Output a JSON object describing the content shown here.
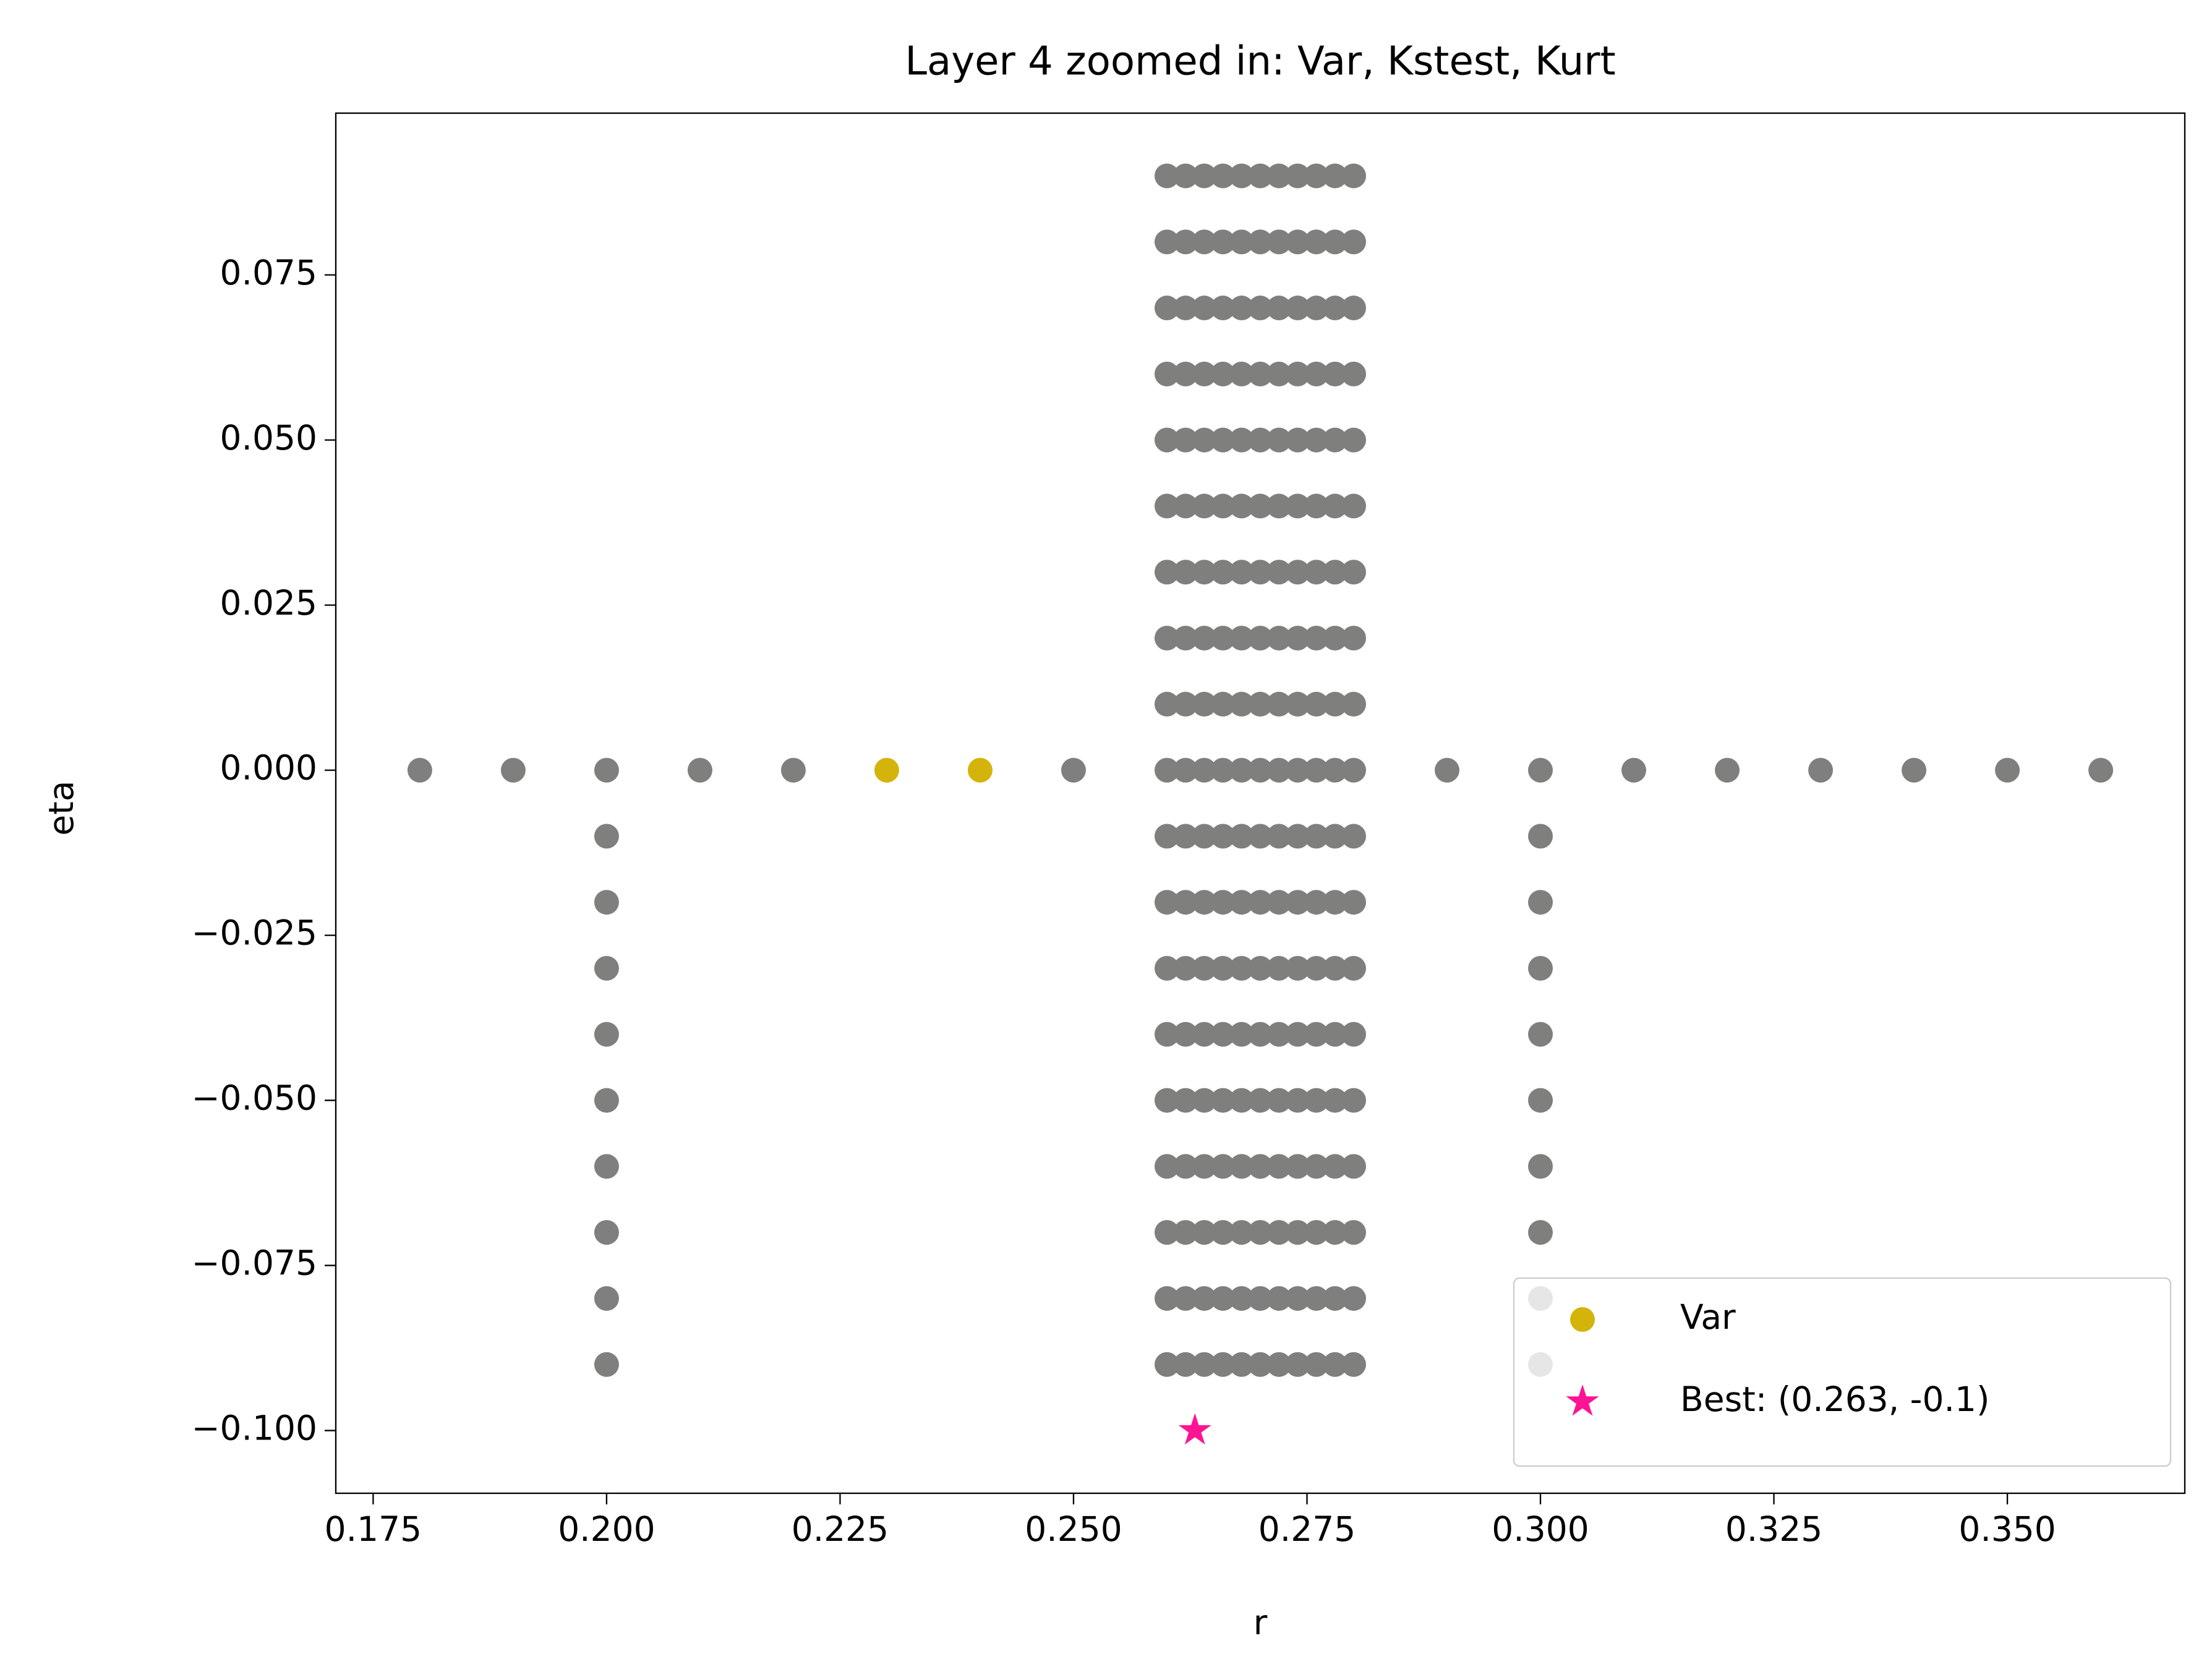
{
  "chart_data": {
    "type": "scatter",
    "title": "Layer 4 zoomed in: Var, Kstest, Kurt",
    "x_label": "r",
    "y_label": "eta",
    "xlim": [
      0.171,
      0.369
    ],
    "ylim": [
      -0.1095,
      0.0995
    ],
    "xticks": [
      0.175,
      {
        "value": 0.2,
        "label": "0.200"
      },
      0.225,
      {
        "value": 0.25,
        "label": "0.250"
      },
      0.275,
      {
        "value": 0.3,
        "label": "0.300"
      },
      0.325,
      {
        "value": 0.35,
        "label": "0.350"
      }
    ],
    "yticks": [
      {
        "value": -0.1,
        "label": "−0.100"
      },
      {
        "value": -0.075,
        "label": "−0.075"
      },
      {
        "value": -0.05,
        "label": "−0.050"
      },
      {
        "value": -0.025,
        "label": "−0.025"
      },
      {
        "value": 0,
        "label": "0.000"
      },
      {
        "value": 0.025,
        "label": "0.025"
      },
      {
        "value": 0.05,
        "label": "0.050"
      },
      {
        "value": 0.075,
        "label": "0.075"
      }
    ],
    "legend": "lower right",
    "series": [
      {
        "color": "#7f807e",
        "marker": "circle",
        "x": [
          0.18,
          0.19,
          0.2,
          0.21,
          0.22,
          0.25,
          0.29,
          0.3,
          0.31,
          0.32,
          0.33,
          0.34,
          0.35,
          0.36,
          0.2,
          0.2,
          0.2,
          0.2,
          0.2,
          0.2,
          0.2,
          0.2,
          0.2,
          0.3,
          0.3,
          0.3,
          0.3,
          0.3,
          0.3,
          0.3,
          0.3,
          0.3,
          0.26,
          0.262,
          0.264,
          0.266,
          0.268,
          0.27,
          0.272,
          0.274,
          0.276,
          0.278,
          0.28,
          0.26,
          0.262,
          0.264,
          0.266,
          0.268,
          0.27,
          0.272,
          0.274,
          0.276,
          0.278,
          0.28,
          0.26,
          0.262,
          0.264,
          0.266,
          0.268,
          0.27,
          0.272,
          0.274,
          0.276,
          0.278,
          0.28,
          0.26,
          0.262,
          0.264,
          0.266,
          0.268,
          0.27,
          0.272,
          0.274,
          0.276,
          0.278,
          0.28,
          0.26,
          0.262,
          0.264,
          0.266,
          0.268,
          0.27,
          0.272,
          0.274,
          0.276,
          0.278,
          0.28,
          0.26,
          0.262,
          0.264,
          0.266,
          0.268,
          0.27,
          0.272,
          0.274,
          0.276,
          0.278,
          0.28,
          0.26,
          0.262,
          0.264,
          0.266,
          0.268,
          0.27,
          0.272,
          0.274,
          0.276,
          0.278,
          0.28,
          0.26,
          0.262,
          0.264,
          0.266,
          0.268,
          0.27,
          0.272,
          0.274,
          0.276,
          0.278,
          0.28,
          0.26,
          0.262,
          0.264,
          0.266,
          0.268,
          0.27,
          0.272,
          0.274,
          0.276,
          0.278,
          0.28,
          0.26,
          0.262,
          0.264,
          0.266,
          0.268,
          0.27,
          0.272,
          0.274,
          0.276,
          0.278,
          0.28,
          0.26,
          0.262,
          0.264,
          0.266,
          0.268,
          0.27,
          0.272,
          0.274,
          0.276,
          0.278,
          0.28,
          0.26,
          0.262,
          0.264,
          0.266,
          0.268,
          0.27,
          0.272,
          0.274,
          0.276,
          0.278,
          0.28,
          0.26,
          0.262,
          0.264,
          0.266,
          0.268,
          0.27,
          0.272,
          0.274,
          0.276,
          0.278,
          0.28,
          0.26,
          0.262,
          0.264,
          0.266,
          0.268,
          0.27,
          0.272,
          0.274,
          0.276,
          0.278,
          0.28,
          0.26,
          0.262,
          0.264,
          0.266,
          0.268,
          0.27,
          0.272,
          0.274,
          0.276,
          0.278,
          0.28,
          0.26,
          0.262,
          0.264,
          0.266,
          0.268,
          0.27,
          0.272,
          0.274,
          0.276,
          0.278,
          0.28,
          0.26,
          0.262,
          0.264,
          0.266,
          0.268,
          0.27,
          0.272,
          0.274,
          0.276,
          0.278,
          0.28,
          0.26,
          0.262,
          0.264,
          0.266,
          0.268,
          0.27,
          0.272,
          0.274,
          0.276,
          0.278,
          0.28,
          0.26,
          0.262,
          0.264,
          0.266,
          0.268,
          0.27,
          0.272,
          0.274,
          0.276,
          0.278,
          0.28
        ],
        "y": [
          0,
          0,
          0,
          0,
          0,
          0,
          0,
          0,
          0,
          0,
          0,
          0,
          0,
          0,
          -0.01,
          -0.02,
          -0.03,
          -0.04,
          -0.05,
          -0.06,
          -0.07,
          -0.08,
          -0.09,
          -0.01,
          -0.02,
          -0.03,
          -0.04,
          -0.05,
          -0.06,
          -0.07,
          -0.08,
          -0.09,
          0.09,
          0.09,
          0.09,
          0.09,
          0.09,
          0.09,
          0.09,
          0.09,
          0.09,
          0.09,
          0.09,
          0.08,
          0.08,
          0.08,
          0.08,
          0.08,
          0.08,
          0.08,
          0.08,
          0.08,
          0.08,
          0.08,
          0.07,
          0.07,
          0.07,
          0.07,
          0.07,
          0.07,
          0.07,
          0.07,
          0.07,
          0.07,
          0.07,
          0.06,
          0.06,
          0.06,
          0.06,
          0.06,
          0.06,
          0.06,
          0.06,
          0.06,
          0.06,
          0.06,
          0.05,
          0.05,
          0.05,
          0.05,
          0.05,
          0.05,
          0.05,
          0.05,
          0.05,
          0.05,
          0.05,
          0.04,
          0.04,
          0.04,
          0.04,
          0.04,
          0.04,
          0.04,
          0.04,
          0.04,
          0.04,
          0.04,
          0.03,
          0.03,
          0.03,
          0.03,
          0.03,
          0.03,
          0.03,
          0.03,
          0.03,
          0.03,
          0.03,
          0.02,
          0.02,
          0.02,
          0.02,
          0.02,
          0.02,
          0.02,
          0.02,
          0.02,
          0.02,
          0.02,
          0.01,
          0.01,
          0.01,
          0.01,
          0.01,
          0.01,
          0.01,
          0.01,
          0.01,
          0.01,
          0.01,
          0,
          0,
          0,
          0,
          0,
          0,
          0,
          0,
          0,
          0,
          0,
          -0.01,
          -0.01,
          -0.01,
          -0.01,
          -0.01,
          -0.01,
          -0.01,
          -0.01,
          -0.01,
          -0.01,
          -0.01,
          -0.02,
          -0.02,
          -0.02,
          -0.02,
          -0.02,
          -0.02,
          -0.02,
          -0.02,
          -0.02,
          -0.02,
          -0.02,
          -0.03,
          -0.03,
          -0.03,
          -0.03,
          -0.03,
          -0.03,
          -0.03,
          -0.03,
          -0.03,
          -0.03,
          -0.03,
          -0.04,
          -0.04,
          -0.04,
          -0.04,
          -0.04,
          -0.04,
          -0.04,
          -0.04,
          -0.04,
          -0.04,
          -0.04,
          -0.05,
          -0.05,
          -0.05,
          -0.05,
          -0.05,
          -0.05,
          -0.05,
          -0.05,
          -0.05,
          -0.05,
          -0.05,
          -0.06,
          -0.06,
          -0.06,
          -0.06,
          -0.06,
          -0.06,
          -0.06,
          -0.06,
          -0.06,
          -0.06,
          -0.06,
          -0.07,
          -0.07,
          -0.07,
          -0.07,
          -0.07,
          -0.07,
          -0.07,
          -0.07,
          -0.07,
          -0.07,
          -0.07,
          -0.08,
          -0.08,
          -0.08,
          -0.08,
          -0.08,
          -0.08,
          -0.08,
          -0.08,
          -0.08,
          -0.08,
          -0.08,
          -0.09,
          -0.09,
          -0.09,
          -0.09,
          -0.09,
          -0.09,
          -0.09,
          -0.09,
          -0.09,
          -0.09,
          -0.09
        ]
      },
      {
        "name": "Var",
        "color": "#d4b40a",
        "marker": "circle",
        "x": [
          0.23,
          0.24
        ],
        "y": [
          0,
          0
        ]
      },
      {
        "name": "Best: (0.263, -0.1)",
        "color": "#ff1493",
        "marker": "star",
        "x": [
          0.263
        ],
        "y": [
          -0.1
        ]
      }
    ]
  }
}
